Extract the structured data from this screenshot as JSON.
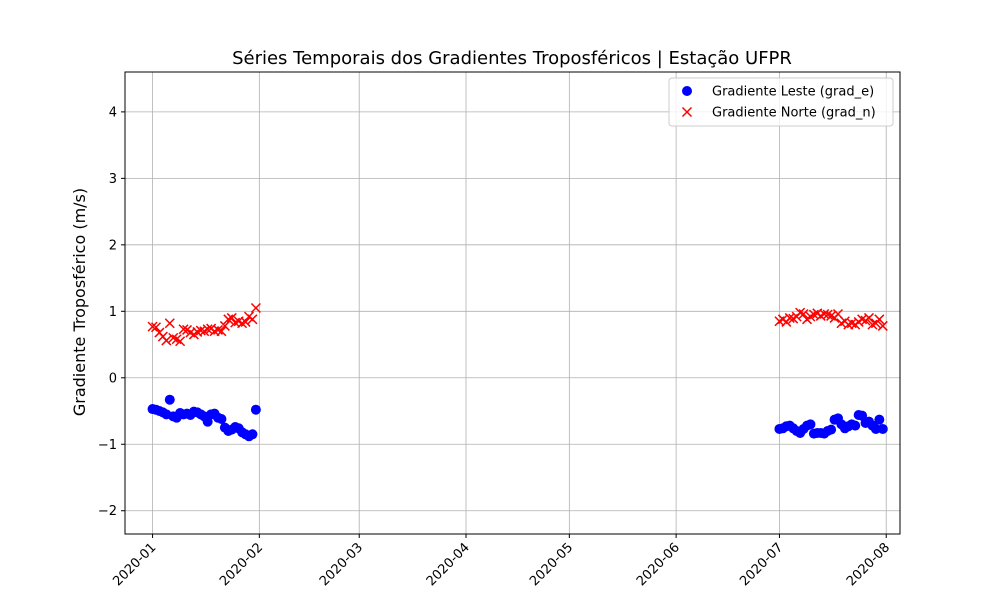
{
  "chart_data": {
    "type": "scatter",
    "title": "Séries Temporais dos Gradientes Troposféricos | Estação UFPR",
    "xlabel": "",
    "ylabel": "Gradiente Troposférico (m/s)",
    "x_type": "date",
    "xlim": [
      "2019-12-24",
      "2020-08-05"
    ],
    "ylim": [
      -2.35,
      4.6
    ],
    "x_ticks": [
      "2020-01",
      "2020-02",
      "2020-03",
      "2020-04",
      "2020-05",
      "2020-06",
      "2020-07",
      "2020-08"
    ],
    "y_ticks": [
      -2,
      -1,
      0,
      1,
      2,
      3,
      4
    ],
    "grid": true,
    "legend_position": "top-right",
    "series": [
      {
        "name": "Gradiente Leste (grad_e)",
        "marker": "circle",
        "color": "#0000ff",
        "points": [
          [
            "2020-01-01",
            -0.47
          ],
          [
            "2020-01-02",
            -0.48
          ],
          [
            "2020-01-03",
            -0.5
          ],
          [
            "2020-01-04",
            -0.52
          ],
          [
            "2020-01-05",
            -0.55
          ],
          [
            "2020-01-06",
            -0.33
          ],
          [
            "2020-01-07",
            -0.58
          ],
          [
            "2020-01-08",
            -0.6
          ],
          [
            "2020-01-09",
            -0.53
          ],
          [
            "2020-01-10",
            -0.55
          ],
          [
            "2020-01-11",
            -0.54
          ],
          [
            "2020-01-12",
            -0.56
          ],
          [
            "2020-01-13",
            -0.51
          ],
          [
            "2020-01-14",
            -0.52
          ],
          [
            "2020-01-15",
            -0.55
          ],
          [
            "2020-01-16",
            -0.58
          ],
          [
            "2020-01-17",
            -0.66
          ],
          [
            "2020-01-18",
            -0.55
          ],
          [
            "2020-01-19",
            -0.54
          ],
          [
            "2020-01-20",
            -0.6
          ],
          [
            "2020-01-21",
            -0.62
          ],
          [
            "2020-01-22",
            -0.75
          ],
          [
            "2020-01-23",
            -0.8
          ],
          [
            "2020-01-24",
            -0.78
          ],
          [
            "2020-01-25",
            -0.74
          ],
          [
            "2020-01-26",
            -0.76
          ],
          [
            "2020-01-27",
            -0.82
          ],
          [
            "2020-01-28",
            -0.85
          ],
          [
            "2020-01-29",
            -0.88
          ],
          [
            "2020-01-30",
            -0.85
          ],
          [
            "2020-01-31",
            -0.48
          ],
          [
            "2020-07-01",
            -0.77
          ],
          [
            "2020-07-02",
            -0.76
          ],
          [
            "2020-07-03",
            -0.73
          ],
          [
            "2020-07-04",
            -0.72
          ],
          [
            "2020-07-05",
            -0.76
          ],
          [
            "2020-07-06",
            -0.8
          ],
          [
            "2020-07-07",
            -0.83
          ],
          [
            "2020-07-08",
            -0.77
          ],
          [
            "2020-07-09",
            -0.72
          ],
          [
            "2020-07-10",
            -0.7
          ],
          [
            "2020-07-11",
            -0.84
          ],
          [
            "2020-07-12",
            -0.83
          ],
          [
            "2020-07-13",
            -0.83
          ],
          [
            "2020-07-14",
            -0.84
          ],
          [
            "2020-07-15",
            -0.8
          ],
          [
            "2020-07-16",
            -0.78
          ],
          [
            "2020-07-17",
            -0.63
          ],
          [
            "2020-07-18",
            -0.61
          ],
          [
            "2020-07-19",
            -0.7
          ],
          [
            "2020-07-20",
            -0.76
          ],
          [
            "2020-07-21",
            -0.73
          ],
          [
            "2020-07-22",
            -0.7
          ],
          [
            "2020-07-23",
            -0.72
          ],
          [
            "2020-07-24",
            -0.56
          ],
          [
            "2020-07-25",
            -0.57
          ],
          [
            "2020-07-26",
            -0.68
          ],
          [
            "2020-07-27",
            -0.66
          ],
          [
            "2020-07-28",
            -0.72
          ],
          [
            "2020-07-29",
            -0.77
          ],
          [
            "2020-07-30",
            -0.63
          ],
          [
            "2020-07-31",
            -0.77
          ]
        ]
      },
      {
        "name": "Gradiente Norte (grad_n)",
        "marker": "x",
        "color": "#ff0000",
        "points": [
          [
            "2020-01-01",
            0.77
          ],
          [
            "2020-01-02",
            0.76
          ],
          [
            "2020-01-03",
            0.68
          ],
          [
            "2020-01-04",
            0.62
          ],
          [
            "2020-01-05",
            0.56
          ],
          [
            "2020-01-06",
            0.82
          ],
          [
            "2020-01-07",
            0.6
          ],
          [
            "2020-01-08",
            0.58
          ],
          [
            "2020-01-09",
            0.55
          ],
          [
            "2020-01-10",
            0.73
          ],
          [
            "2020-01-11",
            0.72
          ],
          [
            "2020-01-12",
            0.68
          ],
          [
            "2020-01-13",
            0.65
          ],
          [
            "2020-01-14",
            0.69
          ],
          [
            "2020-01-15",
            0.71
          ],
          [
            "2020-01-16",
            0.7
          ],
          [
            "2020-01-17",
            0.73
          ],
          [
            "2020-01-18",
            0.74
          ],
          [
            "2020-01-19",
            0.7
          ],
          [
            "2020-01-20",
            0.72
          ],
          [
            "2020-01-21",
            0.7
          ],
          [
            "2020-01-22",
            0.78
          ],
          [
            "2020-01-23",
            0.88
          ],
          [
            "2020-01-24",
            0.9
          ],
          [
            "2020-01-25",
            0.83
          ],
          [
            "2020-01-26",
            0.85
          ],
          [
            "2020-01-27",
            0.82
          ],
          [
            "2020-01-28",
            0.84
          ],
          [
            "2020-01-29",
            0.92
          ],
          [
            "2020-01-30",
            0.88
          ],
          [
            "2020-01-31",
            1.05
          ],
          [
            "2020-07-01",
            0.85
          ],
          [
            "2020-07-02",
            0.88
          ],
          [
            "2020-07-03",
            0.84
          ],
          [
            "2020-07-04",
            0.9
          ],
          [
            "2020-07-05",
            0.89
          ],
          [
            "2020-07-06",
            0.92
          ],
          [
            "2020-07-07",
            0.98
          ],
          [
            "2020-07-08",
            0.96
          ],
          [
            "2020-07-09",
            0.88
          ],
          [
            "2020-07-10",
            0.92
          ],
          [
            "2020-07-11",
            0.95
          ],
          [
            "2020-07-12",
            0.97
          ],
          [
            "2020-07-13",
            0.93
          ],
          [
            "2020-07-14",
            0.96
          ],
          [
            "2020-07-15",
            0.95
          ],
          [
            "2020-07-16",
            0.93
          ],
          [
            "2020-07-17",
            0.9
          ],
          [
            "2020-07-18",
            0.96
          ],
          [
            "2020-07-19",
            0.82
          ],
          [
            "2020-07-20",
            0.85
          ],
          [
            "2020-07-21",
            0.8
          ],
          [
            "2020-07-22",
            0.82
          ],
          [
            "2020-07-23",
            0.8
          ],
          [
            "2020-07-24",
            0.84
          ],
          [
            "2020-07-25",
            0.88
          ],
          [
            "2020-07-26",
            0.86
          ],
          [
            "2020-07-27",
            0.9
          ],
          [
            "2020-07-28",
            0.8
          ],
          [
            "2020-07-29",
            0.82
          ],
          [
            "2020-07-30",
            0.88
          ],
          [
            "2020-07-31",
            0.78
          ]
        ]
      }
    ]
  }
}
